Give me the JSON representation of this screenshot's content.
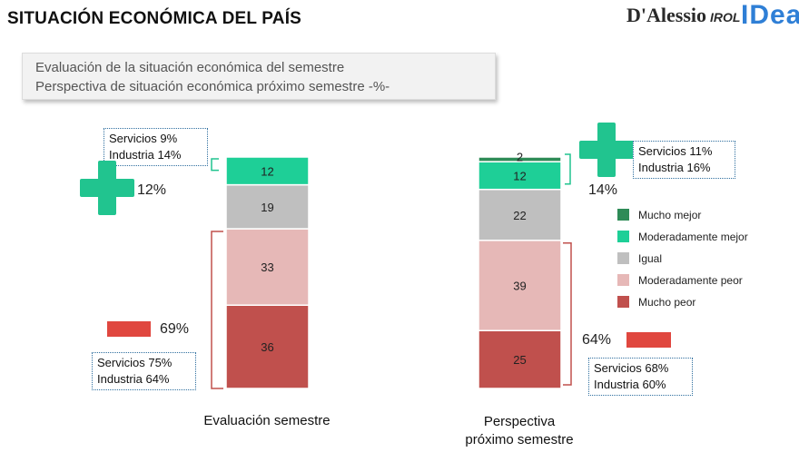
{
  "header": {
    "title": "SITUACIÓN ECONÓMICA DEL PAÍS",
    "logo_main": "D'Alessio",
    "logo_sub": "IROL",
    "logo_idea": "IDea"
  },
  "subtitle": {
    "line1": "Evaluación de la situación económica del semestre",
    "line2": "Perspectiva de situación económica próximo semestre -%-"
  },
  "colors": {
    "mucho_mejor": "#2e8b57",
    "moderadamente_mejor": "#1ecf97",
    "igual": "#bfbfbf",
    "moderadamente_peor": "#e6b8b7",
    "mucho_peor": "#c0504d",
    "positive_icon": "#21c48f",
    "negative_bar": "#e0473f"
  },
  "chart_data": {
    "type": "bar",
    "stacked": true,
    "categories": [
      "Evaluación semestre",
      "Perspectiva próximo semestre"
    ],
    "series": [
      {
        "name": "Mucho peor",
        "values": [
          36,
          25
        ]
      },
      {
        "name": "Moderadamente peor",
        "values": [
          33,
          39
        ]
      },
      {
        "name": "Igual",
        "values": [
          19,
          22
        ]
      },
      {
        "name": "Moderadamente mejor",
        "values": [
          12,
          12
        ]
      },
      {
        "name": "Mucho mejor",
        "values": [
          0,
          2
        ]
      }
    ],
    "legend_position": "right",
    "grid": false
  },
  "axis_labels": {
    "bar1": "Evaluación semestre",
    "bar2_line1": "Perspectiva",
    "bar2_line2": "próximo semestre"
  },
  "legend": [
    {
      "label": "Mucho mejor",
      "color": "#2e8b57"
    },
    {
      "label": "Moderadamente mejor",
      "color": "#1ecf97"
    },
    {
      "label": "Igual",
      "color": "#bfbfbf"
    },
    {
      "label": "Moderadamente peor",
      "color": "#e6b8b7"
    },
    {
      "label": "Mucho peor",
      "color": "#c0504d"
    }
  ],
  "annotations": {
    "bar1_positive_note": {
      "line1": "Servicios 9%",
      "line2": "Industria 14%"
    },
    "bar1_positive_total": "12%",
    "bar1_negative_total": "69%",
    "bar1_negative_note": {
      "line1": "Servicios 75%",
      "line2": "Industria 64%"
    },
    "bar2_positive_note": {
      "line1": "Servicios 11%",
      "line2": "Industria 16%"
    },
    "bar2_positive_total": "14%",
    "bar2_negative_total": "64%",
    "bar2_negative_note": {
      "line1": "Servicios 68%",
      "line2": "Industria 60%"
    }
  }
}
